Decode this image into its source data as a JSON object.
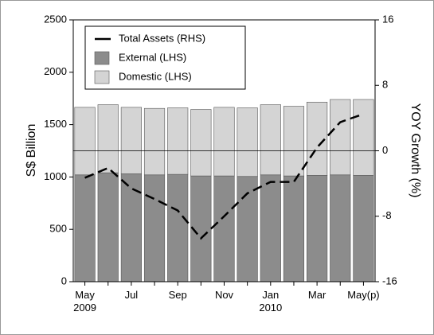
{
  "chart_data": {
    "type": "bar",
    "categories": [
      "May 2009",
      null,
      "Jul",
      null,
      "Sep",
      null,
      "Nov",
      null,
      "Jan 2010",
      null,
      "Mar",
      null,
      "May(p)"
    ],
    "series": [
      {
        "name": "External (LHS)",
        "color": "#8c8c8c",
        "values": [
          1020,
          1040,
          1030,
          1020,
          1025,
          1010,
          1010,
          1005,
          1020,
          1010,
          1015,
          1020,
          1015
        ]
      },
      {
        "name": "Domestic (LHS)",
        "color": "#d4d4d4",
        "values": [
          645,
          650,
          635,
          635,
          635,
          635,
          655,
          655,
          670,
          665,
          700,
          720,
          725
        ]
      },
      {
        "name": "Total Assets (RHS)",
        "color": "#000000",
        "axis": "y2",
        "line": true,
        "values": [
          -3.3,
          -2.1,
          -4.6,
          -5.9,
          -7.3,
          -10.7,
          -8.0,
          -5.2,
          -3.8,
          -3.8,
          0.4,
          3.5,
          4.5
        ]
      }
    ],
    "ylabel": "S$ Billion",
    "y2label": "YOY Growth (%)",
    "ylim": [
      0,
      2500
    ],
    "yticks": [
      0,
      500,
      1000,
      1500,
      2000,
      2500
    ],
    "y2lim": [
      -16,
      16
    ],
    "y2ticks": [
      -16,
      -8,
      0,
      8,
      16
    ],
    "legend": "upper left"
  }
}
